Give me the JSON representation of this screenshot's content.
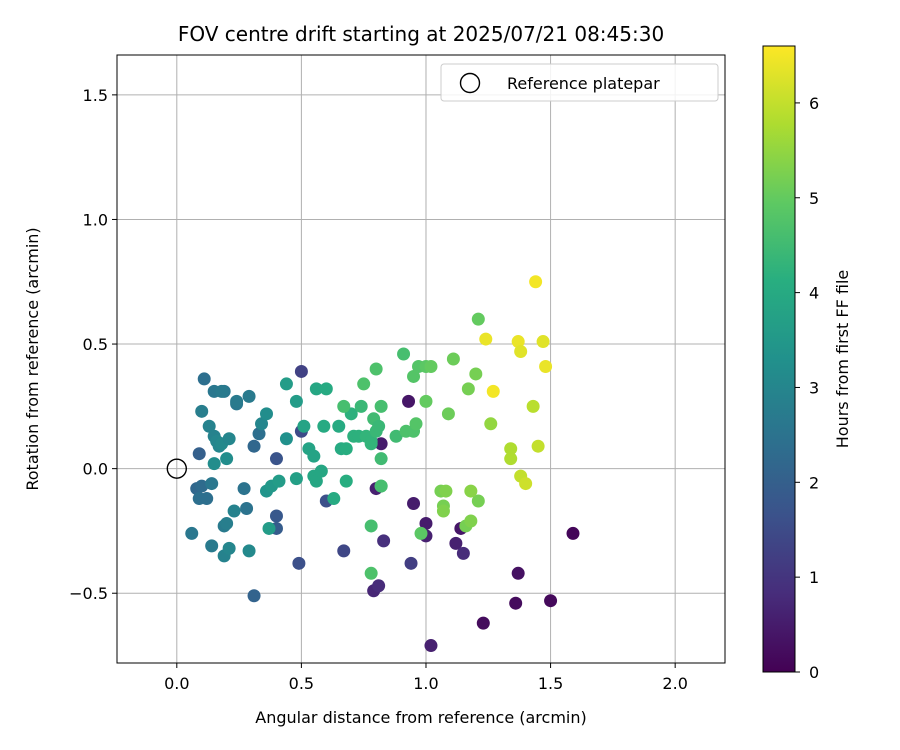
{
  "chart_data": {
    "type": "scatter",
    "title": "FOV centre drift starting at 2025/07/21 08:45:30",
    "xlabel": "Angular distance from reference (arcmin)",
    "ylabel": "Rotation from reference (arcmin)",
    "xlim": [
      -0.24,
      2.2
    ],
    "ylim": [
      -0.78,
      1.66
    ],
    "xticks": [
      0.0,
      0.5,
      1.0,
      1.5,
      2.0
    ],
    "xtick_labels": [
      "0.0",
      "0.5",
      "1.0",
      "1.5",
      "2.0"
    ],
    "yticks": [
      -0.5,
      0.0,
      0.5,
      1.0,
      1.5
    ],
    "ytick_labels": [
      "−0.5",
      "0.0",
      "0.5",
      "1.0",
      "1.5"
    ],
    "grid": true,
    "legend": {
      "placement": "top-right",
      "label": "Reference platepar"
    },
    "reference": {
      "x": 0.0,
      "y": 0.0
    },
    "colorbar": {
      "label": "Hours from first FF file",
      "range": [
        0,
        6.6
      ],
      "ticks": [
        0,
        1,
        2,
        3,
        4,
        5,
        6
      ],
      "tick_labels": [
        "0",
        "1",
        "2",
        "3",
        "4",
        "5",
        "6"
      ],
      "colormap": "viridis"
    },
    "points": [
      {
        "x": 1.59,
        "y": -0.26,
        "c": 0.1
      },
      {
        "x": 1.5,
        "y": -0.53,
        "c": 0.15
      },
      {
        "x": 1.36,
        "y": -0.54,
        "c": 0.2
      },
      {
        "x": 1.23,
        "y": -0.62,
        "c": 0.2
      },
      {
        "x": 1.37,
        "y": -0.42,
        "c": 0.3
      },
      {
        "x": 1.02,
        "y": -0.71,
        "c": 0.6
      },
      {
        "x": 0.93,
        "y": 0.27,
        "c": 0.4
      },
      {
        "x": 0.95,
        "y": -0.14,
        "c": 0.5
      },
      {
        "x": 1.0,
        "y": -0.22,
        "c": 0.5
      },
      {
        "x": 1.0,
        "y": -0.27,
        "c": 0.6
      },
      {
        "x": 1.14,
        "y": -0.24,
        "c": 0.4
      },
      {
        "x": 1.12,
        "y": -0.3,
        "c": 0.6
      },
      {
        "x": 1.15,
        "y": -0.34,
        "c": 0.8
      },
      {
        "x": 0.79,
        "y": -0.49,
        "c": 0.7
      },
      {
        "x": 0.81,
        "y": -0.47,
        "c": 0.8
      },
      {
        "x": 0.82,
        "y": 0.1,
        "c": 0.5
      },
      {
        "x": 0.8,
        "y": -0.08,
        "c": 0.6
      },
      {
        "x": 0.83,
        "y": -0.29,
        "c": 0.9
      },
      {
        "x": 0.94,
        "y": -0.38,
        "c": 1.2
      },
      {
        "x": 0.67,
        "y": -0.33,
        "c": 1.4
      },
      {
        "x": 0.6,
        "y": -0.13,
        "c": 1.6
      },
      {
        "x": 0.5,
        "y": 0.39,
        "c": 1.3
      },
      {
        "x": 0.5,
        "y": 0.15,
        "c": 1.5
      },
      {
        "x": 0.49,
        "y": -0.38,
        "c": 1.6
      },
      {
        "x": 0.4,
        "y": 0.04,
        "c": 1.7
      },
      {
        "x": 0.4,
        "y": -0.19,
        "c": 1.8
      },
      {
        "x": 0.4,
        "y": -0.24,
        "c": 1.9
      },
      {
        "x": 0.31,
        "y": -0.51,
        "c": 2.1
      },
      {
        "x": 0.09,
        "y": 0.06,
        "c": 2.0
      },
      {
        "x": 0.08,
        "y": -0.08,
        "c": 2.2
      },
      {
        "x": 0.1,
        "y": -0.07,
        "c": 2.3
      },
      {
        "x": 0.09,
        "y": -0.12,
        "c": 2.4
      },
      {
        "x": 0.12,
        "y": -0.12,
        "c": 2.4
      },
      {
        "x": 0.06,
        "y": -0.26,
        "c": 2.6
      },
      {
        "x": 0.14,
        "y": -0.06,
        "c": 2.6
      },
      {
        "x": 0.14,
        "y": -0.31,
        "c": 2.7
      },
      {
        "x": 0.19,
        "y": -0.23,
        "c": 2.7
      },
      {
        "x": 0.2,
        "y": -0.22,
        "c": 2.8
      },
      {
        "x": 0.19,
        "y": -0.35,
        "c": 2.9
      },
      {
        "x": 0.21,
        "y": -0.32,
        "c": 3.0
      },
      {
        "x": 0.29,
        "y": -0.33,
        "c": 3.1
      },
      {
        "x": 0.23,
        "y": -0.17,
        "c": 2.9
      },
      {
        "x": 0.28,
        "y": -0.16,
        "c": 2.5
      },
      {
        "x": 0.27,
        "y": -0.08,
        "c": 2.5
      },
      {
        "x": 0.31,
        "y": 0.09,
        "c": 2.2
      },
      {
        "x": 0.33,
        "y": 0.14,
        "c": 2.4
      },
      {
        "x": 0.11,
        "y": 0.36,
        "c": 2.4
      },
      {
        "x": 0.15,
        "y": 0.31,
        "c": 2.6
      },
      {
        "x": 0.19,
        "y": 0.31,
        "c": 2.6
      },
      {
        "x": 0.18,
        "y": 0.31,
        "c": 2.7
      },
      {
        "x": 0.1,
        "y": 0.23,
        "c": 2.8
      },
      {
        "x": 0.24,
        "y": 0.26,
        "c": 2.6
      },
      {
        "x": 0.24,
        "y": 0.27,
        "c": 2.7
      },
      {
        "x": 0.29,
        "y": 0.29,
        "c": 2.7
      },
      {
        "x": 0.13,
        "y": 0.17,
        "c": 2.9
      },
      {
        "x": 0.15,
        "y": 0.13,
        "c": 2.9
      },
      {
        "x": 0.16,
        "y": 0.11,
        "c": 3.0
      },
      {
        "x": 0.17,
        "y": 0.09,
        "c": 3.0
      },
      {
        "x": 0.18,
        "y": 0.1,
        "c": 3.1
      },
      {
        "x": 0.21,
        "y": 0.12,
        "c": 3.0
      },
      {
        "x": 0.2,
        "y": 0.04,
        "c": 3.2
      },
      {
        "x": 0.15,
        "y": 0.02,
        "c": 3.2
      },
      {
        "x": 0.34,
        "y": 0.18,
        "c": 3.0
      },
      {
        "x": 0.36,
        "y": 0.22,
        "c": 3.2
      },
      {
        "x": 0.36,
        "y": -0.09,
        "c": 3.4
      },
      {
        "x": 0.38,
        "y": -0.07,
        "c": 3.5
      },
      {
        "x": 0.37,
        "y": -0.24,
        "c": 3.6
      },
      {
        "x": 0.41,
        "y": -0.05,
        "c": 3.6
      },
      {
        "x": 0.44,
        "y": 0.12,
        "c": 3.3
      },
      {
        "x": 0.44,
        "y": 0.34,
        "c": 3.6
      },
      {
        "x": 0.48,
        "y": 0.27,
        "c": 3.6
      },
      {
        "x": 0.48,
        "y": -0.04,
        "c": 3.7
      },
      {
        "x": 0.53,
        "y": 0.08,
        "c": 3.8
      },
      {
        "x": 0.55,
        "y": 0.05,
        "c": 3.8
      },
      {
        "x": 0.51,
        "y": 0.17,
        "c": 3.8
      },
      {
        "x": 0.55,
        "y": -0.03,
        "c": 3.9
      },
      {
        "x": 0.56,
        "y": -0.05,
        "c": 3.9
      },
      {
        "x": 0.58,
        "y": -0.01,
        "c": 3.9
      },
      {
        "x": 0.56,
        "y": 0.32,
        "c": 3.9
      },
      {
        "x": 0.6,
        "y": 0.32,
        "c": 4.0
      },
      {
        "x": 0.59,
        "y": 0.17,
        "c": 4.0
      },
      {
        "x": 0.63,
        "y": -0.12,
        "c": 4.0
      },
      {
        "x": 0.65,
        "y": 0.17,
        "c": 4.0
      },
      {
        "x": 0.66,
        "y": 0.08,
        "c": 4.0
      },
      {
        "x": 0.68,
        "y": 0.08,
        "c": 4.1
      },
      {
        "x": 0.68,
        "y": -0.05,
        "c": 4.1
      },
      {
        "x": 0.7,
        "y": 0.22,
        "c": 4.2
      },
      {
        "x": 0.71,
        "y": 0.13,
        "c": 4.2
      },
      {
        "x": 0.73,
        "y": 0.13,
        "c": 4.2
      },
      {
        "x": 0.74,
        "y": 0.25,
        "c": 4.4
      },
      {
        "x": 0.76,
        "y": 0.13,
        "c": 4.3
      },
      {
        "x": 0.78,
        "y": 0.11,
        "c": 4.3
      },
      {
        "x": 0.78,
        "y": 0.1,
        "c": 4.3
      },
      {
        "x": 0.79,
        "y": 0.2,
        "c": 4.5
      },
      {
        "x": 0.8,
        "y": 0.15,
        "c": 4.4
      },
      {
        "x": 0.81,
        "y": 0.17,
        "c": 4.4
      },
      {
        "x": 0.82,
        "y": 0.04,
        "c": 4.5
      },
      {
        "x": 0.82,
        "y": -0.07,
        "c": 4.6
      },
      {
        "x": 0.82,
        "y": -0.07,
        "c": 4.6
      },
      {
        "x": 0.78,
        "y": -0.23,
        "c": 4.6
      },
      {
        "x": 0.78,
        "y": -0.42,
        "c": 4.7
      },
      {
        "x": 0.75,
        "y": 0.34,
        "c": 4.7
      },
      {
        "x": 0.8,
        "y": 0.4,
        "c": 4.7
      },
      {
        "x": 0.82,
        "y": 0.25,
        "c": 4.6
      },
      {
        "x": 0.67,
        "y": 0.25,
        "c": 4.6
      },
      {
        "x": 0.88,
        "y": 0.13,
        "c": 4.5
      },
      {
        "x": 0.91,
        "y": 0.46,
        "c": 4.6
      },
      {
        "x": 0.92,
        "y": 0.15,
        "c": 4.7
      },
      {
        "x": 0.95,
        "y": 0.15,
        "c": 4.7
      },
      {
        "x": 0.95,
        "y": 0.37,
        "c": 4.8
      },
      {
        "x": 0.96,
        "y": 0.18,
        "c": 4.8
      },
      {
        "x": 0.97,
        "y": 0.41,
        "c": 4.8
      },
      {
        "x": 0.98,
        "y": -0.26,
        "c": 4.9
      },
      {
        "x": 1.0,
        "y": 0.41,
        "c": 4.9
      },
      {
        "x": 1.02,
        "y": 0.41,
        "c": 5.0
      },
      {
        "x": 1.0,
        "y": 0.27,
        "c": 5.0
      },
      {
        "x": 1.11,
        "y": 0.44,
        "c": 5.1
      },
      {
        "x": 1.09,
        "y": 0.22,
        "c": 5.1
      },
      {
        "x": 1.06,
        "y": -0.09,
        "c": 5.2
      },
      {
        "x": 1.07,
        "y": -0.15,
        "c": 5.2
      },
      {
        "x": 1.07,
        "y": -0.17,
        "c": 5.3
      },
      {
        "x": 1.08,
        "y": -0.09,
        "c": 5.3
      },
      {
        "x": 1.16,
        "y": -0.23,
        "c": 5.2
      },
      {
        "x": 1.18,
        "y": -0.21,
        "c": 5.3
      },
      {
        "x": 1.17,
        "y": 0.32,
        "c": 5.2
      },
      {
        "x": 1.2,
        "y": 0.38,
        "c": 5.2
      },
      {
        "x": 1.21,
        "y": 0.6,
        "c": 5.0
      },
      {
        "x": 1.21,
        "y": -0.13,
        "c": 5.2
      },
      {
        "x": 1.18,
        "y": -0.09,
        "c": 5.4
      },
      {
        "x": 1.26,
        "y": 0.18,
        "c": 5.5
      },
      {
        "x": 1.34,
        "y": 0.08,
        "c": 5.8
      },
      {
        "x": 1.34,
        "y": 0.04,
        "c": 5.8
      },
      {
        "x": 1.38,
        "y": -0.03,
        "c": 6.0
      },
      {
        "x": 1.4,
        "y": -0.06,
        "c": 6.1
      },
      {
        "x": 1.43,
        "y": 0.25,
        "c": 5.9
      },
      {
        "x": 1.45,
        "y": 0.09,
        "c": 6.0
      },
      {
        "x": 1.24,
        "y": 0.52,
        "c": 6.4
      },
      {
        "x": 1.27,
        "y": 0.31,
        "c": 6.5
      },
      {
        "x": 1.37,
        "y": 0.51,
        "c": 6.4
      },
      {
        "x": 1.38,
        "y": 0.47,
        "c": 6.3
      },
      {
        "x": 1.47,
        "y": 0.51,
        "c": 6.3
      },
      {
        "x": 1.48,
        "y": 0.41,
        "c": 6.4
      },
      {
        "x": 1.44,
        "y": 0.75,
        "c": 6.5
      }
    ]
  }
}
